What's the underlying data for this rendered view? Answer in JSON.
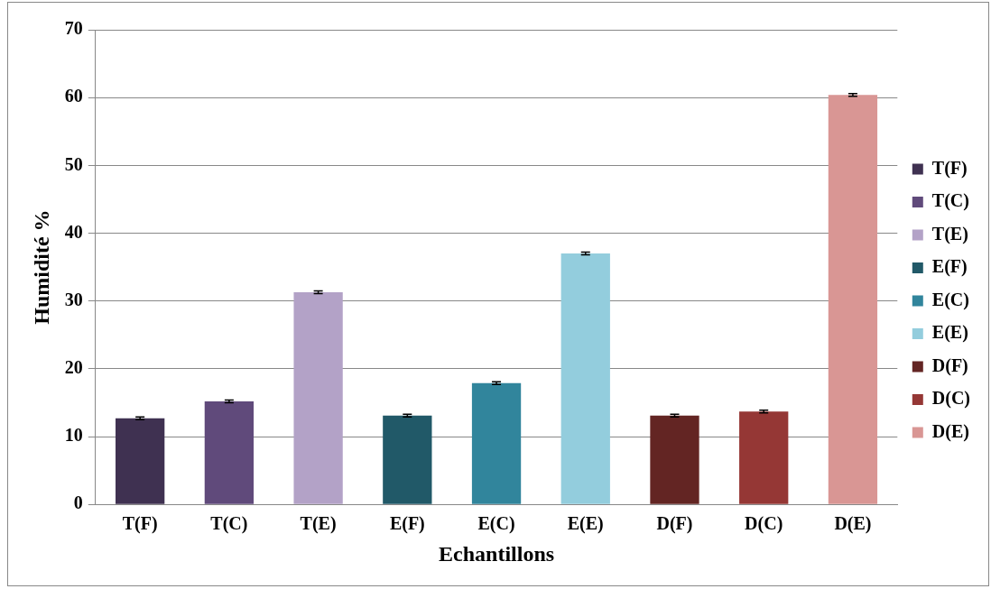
{
  "chart_data": {
    "type": "bar",
    "xlabel": "Echantillons",
    "ylabel": "Humidité %",
    "categories": [
      "T(F)",
      "T(C)",
      "T(E)",
      "E(F)",
      "E(C)",
      "E(E)",
      "D(F)",
      "D(C)",
      "D(E)"
    ],
    "series": [
      {
        "name": "T(F)",
        "color": "#3f3151",
        "values": [
          12.7,
          null,
          null,
          null,
          null,
          null,
          null,
          null,
          null
        ],
        "errors": [
          0.2,
          null,
          null,
          null,
          null,
          null,
          null,
          null,
          null
        ]
      },
      {
        "name": "T(C)",
        "color": "#604a7b",
        "values": [
          null,
          15.2,
          null,
          null,
          null,
          null,
          null,
          null,
          null
        ],
        "errors": [
          null,
          0.2,
          null,
          null,
          null,
          null,
          null,
          null,
          null
        ]
      },
      {
        "name": "T(E)",
        "color": "#b3a2c7",
        "values": [
          null,
          null,
          31.3,
          null,
          null,
          null,
          null,
          null,
          null
        ],
        "errors": [
          null,
          null,
          0.2,
          null,
          null,
          null,
          null,
          null,
          null
        ]
      },
      {
        "name": "E(F)",
        "color": "#215968",
        "values": [
          null,
          null,
          null,
          13.1,
          null,
          null,
          null,
          null,
          null
        ],
        "errors": [
          null,
          null,
          null,
          0.2,
          null,
          null,
          null,
          null,
          null
        ]
      },
      {
        "name": "E(C)",
        "color": "#31859c",
        "values": [
          null,
          null,
          null,
          null,
          17.9,
          null,
          null,
          null,
          null
        ],
        "errors": [
          null,
          null,
          null,
          null,
          0.2,
          null,
          null,
          null,
          null
        ]
      },
      {
        "name": "E(E)",
        "color": "#93cddd",
        "values": [
          null,
          null,
          null,
          null,
          null,
          37.0,
          null,
          null,
          null
        ],
        "errors": [
          null,
          null,
          null,
          null,
          null,
          0.2,
          null,
          null,
          null
        ]
      },
      {
        "name": "D(F)",
        "color": "#632523",
        "values": [
          null,
          null,
          null,
          null,
          null,
          null,
          13.1,
          null,
          null
        ],
        "errors": [
          null,
          null,
          null,
          null,
          null,
          null,
          0.2,
          null,
          null
        ]
      },
      {
        "name": "D(C)",
        "color": "#953735",
        "values": [
          null,
          null,
          null,
          null,
          null,
          null,
          null,
          13.7,
          null
        ],
        "errors": [
          null,
          null,
          null,
          null,
          null,
          null,
          null,
          0.2,
          null
        ]
      },
      {
        "name": "D(E)",
        "color": "#d99694",
        "values": [
          null,
          null,
          null,
          null,
          null,
          null,
          null,
          null,
          60.4
        ],
        "errors": [
          null,
          null,
          null,
          null,
          null,
          null,
          null,
          null,
          0.2
        ]
      }
    ],
    "ylim": [
      0,
      70
    ],
    "yticks": [
      0,
      10,
      20,
      30,
      40,
      50,
      60,
      70
    ],
    "grid": "y",
    "legend": "right"
  }
}
